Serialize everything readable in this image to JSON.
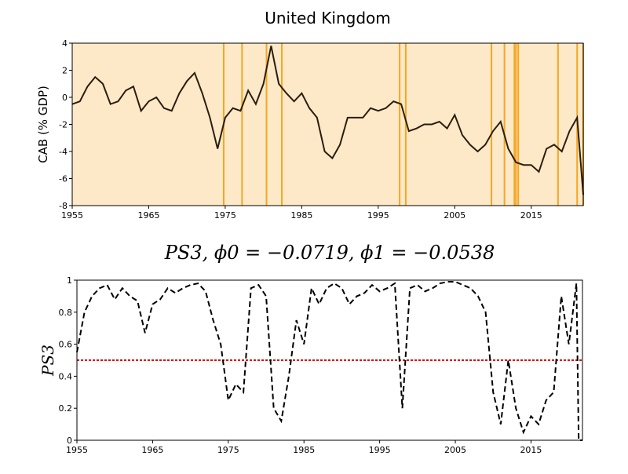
{
  "chart_data": [
    {
      "type": "line",
      "title": "United Kingdom",
      "ylabel": "CAB (% GDP)",
      "xlim": [
        1955,
        2021.8
      ],
      "xticks": [
        1955,
        1965,
        1975,
        1985,
        1995,
        2005,
        2015
      ],
      "ylim": [
        -8,
        4
      ],
      "yticks": [
        -8,
        -6,
        -4,
        -2,
        0,
        2,
        4
      ],
      "background": "#fde9c8",
      "vlines": [
        1974.8,
        1977.2,
        1980.4,
        1982.4,
        1997.8,
        1998.6,
        2009.8,
        2011.5,
        2012.8,
        2013.0,
        2013.3,
        2018.5,
        2021.0,
        2021.8
      ],
      "vline_color": "#f5a623",
      "series": [
        {
          "name": "CAB",
          "color": "#2b1d0e",
          "x": [
            1955,
            1956,
            1957,
            1958,
            1959,
            1960,
            1961,
            1962,
            1963,
            1964,
            1965,
            1966,
            1967,
            1968,
            1969,
            1970,
            1971,
            1972,
            1973,
            1974,
            1975,
            1976,
            1977,
            1978,
            1979,
            1980,
            1981,
            1982,
            1983,
            1984,
            1985,
            1986,
            1987,
            1988,
            1989,
            1990,
            1991,
            1992,
            1993,
            1994,
            1995,
            1996,
            1997,
            1998,
            1999,
            2000,
            2001,
            2002,
            2003,
            2004,
            2005,
            2006,
            2007,
            2008,
            2009,
            2010,
            2011,
            2012,
            2013,
            2014,
            2015,
            2016,
            2017,
            2018,
            2019,
            2020,
            2021,
            2021.8
          ],
          "values": [
            -0.5,
            -0.3,
            0.8,
            1.5,
            1.0,
            -0.5,
            -0.3,
            0.5,
            0.8,
            -1.0,
            -0.3,
            0.0,
            -0.8,
            -1.0,
            0.3,
            1.2,
            1.8,
            0.3,
            -1.5,
            -3.8,
            -1.5,
            -0.8,
            -1.0,
            0.5,
            -0.5,
            1.0,
            3.8,
            1.0,
            0.3,
            -0.3,
            0.3,
            -0.8,
            -1.5,
            -4.0,
            -4.5,
            -3.5,
            -1.5,
            -1.5,
            -1.5,
            -0.8,
            -1.0,
            -0.8,
            -0.3,
            -0.5,
            -2.5,
            -2.3,
            -2.0,
            -2.0,
            -1.8,
            -2.3,
            -1.3,
            -2.8,
            -3.5,
            -4.0,
            -3.5,
            -2.5,
            -1.8,
            -3.8,
            -4.8,
            -5.0,
            -5.0,
            -5.5,
            -3.8,
            -3.5,
            -4.0,
            -2.5,
            -1.5,
            -7.2
          ]
        }
      ]
    },
    {
      "type": "line",
      "title": "PS3, ϕ0 = −0.0719, ϕ1 = −0.0538",
      "ylabel": "PS3",
      "xlim": [
        1955,
        2021.8
      ],
      "xticks": [
        1955,
        1965,
        1975,
        1985,
        1995,
        2005,
        2015
      ],
      "ylim": [
        0,
        1
      ],
      "yticks": [
        0,
        0.2,
        0.4,
        0.6,
        0.8,
        1
      ],
      "hline": 0.5,
      "hline_color": "#e00000",
      "series": [
        {
          "name": "PS3",
          "color": "#000000",
          "x": [
            1955,
            1956,
            1957,
            1958,
            1959,
            1960,
            1961,
            1962,
            1963,
            1964,
            1965,
            1966,
            1967,
            1968,
            1969,
            1970,
            1971,
            1972,
            1973,
            1974,
            1975,
            1976,
            1977,
            1978,
            1979,
            1980,
            1981,
            1982,
            1983,
            1984,
            1985,
            1986,
            1987,
            1988,
            1989,
            1990,
            1991,
            1992,
            1993,
            1994,
            1995,
            1996,
            1997,
            1998,
            1999,
            2000,
            2001,
            2002,
            2003,
            2004,
            2005,
            2006,
            2007,
            2008,
            2009,
            2010,
            2011,
            2012,
            2013,
            2014,
            2015,
            2016,
            2017,
            2018,
            2019,
            2020,
            2021,
            2021.3,
            2021.8
          ],
          "values": [
            0.55,
            0.8,
            0.9,
            0.95,
            0.97,
            0.88,
            0.95,
            0.9,
            0.87,
            0.67,
            0.85,
            0.88,
            0.95,
            0.92,
            0.95,
            0.97,
            0.98,
            0.93,
            0.75,
            0.6,
            0.25,
            0.35,
            0.3,
            0.95,
            0.97,
            0.9,
            0.2,
            0.12,
            0.4,
            0.75,
            0.6,
            0.95,
            0.85,
            0.95,
            0.98,
            0.95,
            0.85,
            0.9,
            0.92,
            0.97,
            0.93,
            0.95,
            0.98,
            0.2,
            0.95,
            0.97,
            0.93,
            0.95,
            0.98,
            0.99,
            0.99,
            0.97,
            0.95,
            0.9,
            0.8,
            0.3,
            0.1,
            0.5,
            0.2,
            0.05,
            0.15,
            0.1,
            0.25,
            0.3,
            0.9,
            0.6,
            0.98,
            0.0,
            0.0
          ]
        }
      ]
    }
  ]
}
